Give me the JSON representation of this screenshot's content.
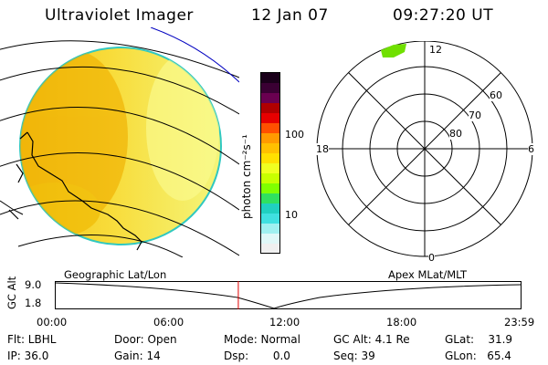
{
  "header": {
    "instrument": "Ultraviolet Imager",
    "date": "12 Jan 07",
    "time": "09:27:20 UT"
  },
  "colorbar": {
    "unit_label": "photon cm⁻²s⁻¹",
    "ticks": [
      "100",
      "10"
    ],
    "colors": [
      "#1a001a",
      "#3a0033",
      "#6a0050",
      "#b00000",
      "#e60000",
      "#ff5000",
      "#ff9a00",
      "#ffc000",
      "#ffe000",
      "#f0ff20",
      "#c8ff00",
      "#80ff00",
      "#30e060",
      "#20d0c0",
      "#40e0e0",
      "#a0f0f0",
      "#e0f8f8",
      "#f0f0f0"
    ]
  },
  "polar_plot": {
    "ring_labels": [
      "80",
      "70",
      "60"
    ],
    "mlt_labels": {
      "top": "12",
      "left": "18",
      "right": "6",
      "bottom": "0"
    }
  },
  "timeline": {
    "axis_title": "GC Alt",
    "y_ticks": [
      "9.0",
      "1.8"
    ],
    "left_caption": "Geographic Lat/Lon",
    "right_caption": "Apex  MLat/MLT",
    "x_ticks": [
      "00:00",
      "06:00",
      "12:00",
      "18:00",
      "23:59"
    ],
    "current_time_fraction": 0.393
  },
  "status": {
    "filter": "Flt: LBHL",
    "ip": "IP: 36.0",
    "door": "Door: Open",
    "gain": "Gain: 14",
    "mode": "Mode: Normal",
    "dsp": "Dsp:       0.0",
    "gc_alt": "GC Alt: 4.1 Re",
    "seq": "Seq: 39",
    "glat": "GLat:    31.9",
    "glon": "GLon:   65.4"
  }
}
